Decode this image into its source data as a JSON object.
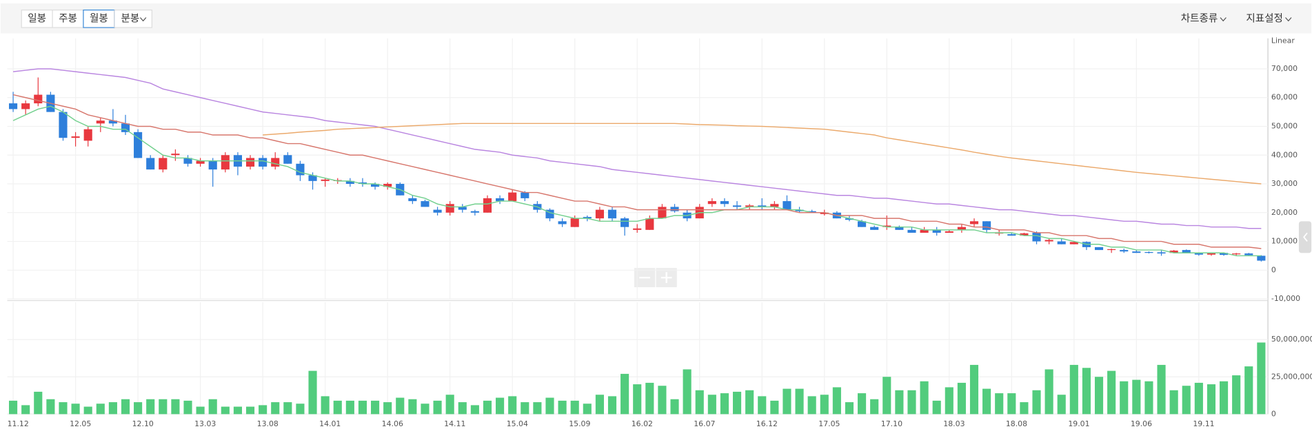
{
  "ui": {
    "period_tabs": [
      "일봉",
      "주봉",
      "월봉",
      "분봉"
    ],
    "selected_tab": 2,
    "menus": [
      "차트종류",
      "지표설정"
    ]
  },
  "chart_data": [
    {
      "type": "candlestick",
      "axis_label": "Linear",
      "categories": [
        "11.12",
        null,
        null,
        null,
        null,
        "12.05",
        null,
        null,
        null,
        null,
        "12.10",
        null,
        null,
        null,
        null,
        "13.03",
        null,
        null,
        null,
        null,
        "13.08",
        null,
        null,
        null,
        null,
        "14.01",
        null,
        null,
        null,
        null,
        "14.06",
        null,
        null,
        null,
        null,
        "14.11",
        null,
        null,
        null,
        null,
        "15.04",
        null,
        null,
        null,
        null,
        "15.09",
        null,
        null,
        null,
        null,
        "16.02",
        null,
        null,
        null,
        null,
        "16.07",
        null,
        null,
        null,
        null,
        "16.12",
        null,
        null,
        null,
        null,
        "17.05",
        null,
        null,
        null,
        null,
        "17.10",
        null,
        null,
        null,
        null,
        "18.03",
        null,
        null,
        null,
        null,
        "18.08",
        null,
        null,
        null,
        null,
        "19.01",
        null,
        null,
        null,
        null,
        "19.06",
        null,
        null,
        null,
        null,
        "19.11",
        null,
        null,
        null,
        null,
        null
      ],
      "open": [
        58000,
        56000,
        58000,
        61000,
        55000,
        46000,
        45000,
        51000,
        52000,
        51000,
        48000,
        39000,
        35000,
        40000,
        39000,
        37000,
        38000,
        35000,
        40000,
        36000,
        39000,
        36000,
        40000,
        37000,
        33000,
        31000,
        31000,
        31000,
        30500,
        30000,
        29000,
        30000,
        25000,
        24000,
        21000,
        20000,
        22000,
        20500,
        20000,
        25000,
        24000,
        27000,
        23000,
        21000,
        17000,
        15000,
        18500,
        18000,
        21000,
        18000,
        14000,
        14000,
        18000,
        22000,
        20000,
        18000,
        23000,
        24000,
        22500,
        22000,
        22500,
        22000,
        24000,
        21000,
        20500,
        19500,
        20000,
        18000,
        17000,
        15000,
        15000,
        15000,
        14000,
        13000,
        14000,
        13000,
        14000,
        16000,
        17000,
        13000,
        12500,
        12000,
        13000,
        10000,
        10000,
        9000,
        9800,
        8000,
        7000,
        7000,
        6500,
        6300,
        6200,
        6000,
        7000,
        6000,
        5400,
        6000,
        5500,
        5800,
        5000
      ],
      "high": [
        62000,
        59000,
        67000,
        62000,
        56000,
        48000,
        50000,
        53000,
        56000,
        54000,
        49000,
        40000,
        40000,
        42000,
        40000,
        39000,
        39000,
        41000,
        41000,
        40000,
        40000,
        41000,
        41000,
        38000,
        34000,
        32000,
        32000,
        32000,
        32000,
        30500,
        30500,
        30500,
        26000,
        24500,
        22000,
        24000,
        23000,
        21000,
        26000,
        26000,
        28000,
        27500,
        24000,
        21500,
        18000,
        19000,
        19000,
        22000,
        22000,
        18500,
        16000,
        19000,
        23000,
        23000,
        21000,
        23000,
        25000,
        25000,
        24000,
        23000,
        25000,
        24000,
        26000,
        22000,
        21000,
        21000,
        20500,
        19000,
        17500,
        15500,
        19000,
        15500,
        15000,
        15000,
        15000,
        14000,
        16000,
        18000,
        17000,
        14000,
        13000,
        13000,
        13500,
        11000,
        11000,
        10000,
        10000,
        8000,
        7500,
        7500,
        7000,
        6500,
        7000,
        7000,
        7200,
        6200,
        6000,
        6200,
        6000,
        6000,
        5200
      ],
      "low": [
        55000,
        54000,
        57000,
        55000,
        45000,
        43000,
        43000,
        48000,
        50000,
        47000,
        39000,
        35000,
        34000,
        38000,
        36000,
        36000,
        29000,
        34000,
        33000,
        35000,
        35000,
        35000,
        37000,
        31000,
        28000,
        29000,
        30000,
        29000,
        29000,
        28000,
        28000,
        26000,
        23000,
        22000,
        19000,
        19000,
        20000,
        19000,
        20000,
        23000,
        24000,
        24000,
        20000,
        17000,
        15000,
        15000,
        17000,
        17000,
        17000,
        12000,
        13000,
        14000,
        18000,
        20000,
        17000,
        18000,
        22000,
        22000,
        21000,
        21000,
        21000,
        21000,
        21000,
        20000,
        20000,
        19000,
        18000,
        17000,
        15000,
        14000,
        14000,
        14000,
        13000,
        13000,
        12000,
        13000,
        13000,
        15000,
        13000,
        12000,
        12000,
        12000,
        9000,
        9000,
        9000,
        9000,
        7000,
        7000,
        6000,
        6000,
        6000,
        5800,
        5000,
        6000,
        6000,
        5000,
        5000,
        5000,
        5000,
        5000,
        3000
      ],
      "close": [
        56000,
        58000,
        61000,
        55000,
        46000,
        46500,
        49000,
        52000,
        51000,
        48000,
        39000,
        35000,
        39000,
        40500,
        37000,
        38000,
        35000,
        40000,
        36000,
        39000,
        36000,
        39000,
        37000,
        33000,
        31000,
        31500,
        31300,
        30000,
        30000,
        29000,
        30000,
        26000,
        24000,
        22000,
        20000,
        23000,
        21000,
        20000,
        25000,
        24000,
        27000,
        25000,
        21000,
        18000,
        16000,
        18000,
        18000,
        21000,
        18000,
        15000,
        14500,
        18000,
        22000,
        20500,
        18000,
        22000,
        24000,
        23000,
        22000,
        22500,
        22000,
        23000,
        21000,
        20500,
        20000,
        20000,
        18000,
        17500,
        15000,
        14000,
        15500,
        14000,
        13000,
        14000,
        13000,
        13500,
        15000,
        17000,
        14000,
        13000,
        12000,
        12800,
        10000,
        10500,
        9000,
        9800,
        8000,
        7000,
        7300,
        6500,
        6000,
        6000,
        5800,
        6800,
        6000,
        5400,
        5900,
        5300,
        5800,
        5200,
        3300
      ],
      "up_color": "#e8383f",
      "down_color": "#2e7fdb",
      "lines": [
        {
          "color": "#72d08e",
          "values": [
            52000,
            54000,
            56000,
            57000,
            55000,
            52000,
            50000,
            50000,
            49000,
            49000,
            46000,
            43000,
            40000,
            39000,
            39000,
            38000,
            38000,
            38000,
            38000,
            38000,
            38000,
            37000,
            36000,
            34000,
            33000,
            32000,
            31000,
            31000,
            30000,
            30000,
            29000,
            28000,
            26000,
            25000,
            23000,
            22000,
            22000,
            23000,
            23000,
            24000,
            24000,
            23000,
            22000,
            20000,
            19000,
            18000,
            18000,
            17000,
            17000,
            17000,
            17000,
            18000,
            18000,
            19000,
            19000,
            20000,
            20000,
            21000,
            21000,
            22000,
            22000,
            22000,
            21000,
            21000,
            20000,
            20000,
            19000,
            18000,
            17000,
            16000,
            15000,
            15000,
            15000,
            14000,
            14000,
            14000,
            14000,
            14000,
            13000,
            13000,
            13000,
            12000,
            12000,
            11000,
            11000,
            10000,
            9000,
            9000,
            8000,
            8000,
            7000,
            7000,
            7000,
            6000,
            6000,
            6000,
            6000,
            6000,
            5000,
            5000,
            5000
          ]
        },
        {
          "color": "#d7766c",
          "values": [
            61000,
            60000,
            59000,
            58000,
            57000,
            56000,
            54000,
            53000,
            52000,
            51000,
            50000,
            50000,
            49000,
            49000,
            48000,
            48000,
            47000,
            47000,
            47000,
            46000,
            46000,
            45000,
            44000,
            44000,
            43000,
            42000,
            41000,
            40000,
            40000,
            39000,
            38000,
            37000,
            36000,
            35000,
            34000,
            33000,
            32000,
            31000,
            30000,
            29000,
            28000,
            27000,
            27000,
            26000,
            25000,
            24000,
            24000,
            23000,
            22000,
            22000,
            21000,
            21000,
            21000,
            21000,
            21000,
            21000,
            21000,
            21000,
            21000,
            21000,
            21000,
            21000,
            21000,
            20000,
            20000,
            20000,
            19000,
            19000,
            19000,
            18000,
            18000,
            18000,
            17000,
            17000,
            17000,
            16000,
            16000,
            15000,
            15000,
            14000,
            14000,
            14000,
            13000,
            13000,
            12000,
            12000,
            12000,
            11000,
            11000,
            10000,
            10000,
            10000,
            10000,
            9000,
            9000,
            9000,
            8000,
            8000,
            8000,
            8000,
            7500
          ]
        },
        {
          "color": "#b985e0",
          "values": [
            69000,
            69500,
            70000,
            70000,
            69500,
            69000,
            68500,
            68000,
            67500,
            67000,
            66000,
            65000,
            63000,
            62000,
            61000,
            60000,
            59000,
            58000,
            57000,
            56000,
            55000,
            54500,
            54000,
            53500,
            53000,
            52000,
            51500,
            51000,
            50500,
            50000,
            49000,
            48000,
            47000,
            46000,
            45000,
            44000,
            43000,
            42000,
            41500,
            41000,
            40000,
            39500,
            39000,
            38000,
            37500,
            37000,
            36500,
            36000,
            35000,
            34500,
            34000,
            33500,
            33000,
            32500,
            32000,
            31500,
            31000,
            30500,
            30000,
            29500,
            29000,
            28500,
            28000,
            27500,
            27000,
            26500,
            26000,
            26000,
            25500,
            25000,
            25000,
            24500,
            24000,
            23500,
            23000,
            23000,
            22500,
            22000,
            21500,
            21000,
            21000,
            20500,
            20000,
            19500,
            19000,
            19000,
            18500,
            18000,
            17500,
            17000,
            17000,
            16500,
            16000,
            16000,
            15500,
            15500,
            15000,
            15000,
            15000,
            14500,
            14500
          ]
        },
        {
          "color": "#eba96b",
          "values": [
            null,
            null,
            null,
            null,
            null,
            null,
            null,
            null,
            null,
            null,
            null,
            null,
            null,
            null,
            null,
            null,
            null,
            null,
            null,
            null,
            47000,
            47300,
            47600,
            48000,
            48300,
            48600,
            49000,
            49200,
            49400,
            49600,
            49800,
            50000,
            50200,
            50400,
            50600,
            50800,
            51000,
            51000,
            51000,
            51000,
            51000,
            51000,
            51000,
            51000,
            51000,
            51000,
            51000,
            51000,
            51000,
            51000,
            51000,
            51000,
            51000,
            51000,
            50800,
            50600,
            50500,
            50400,
            50200,
            50100,
            50000,
            49800,
            49600,
            49400,
            49200,
            49000,
            48500,
            48000,
            47500,
            47000,
            46000,
            45300,
            44600,
            43900,
            43200,
            42500,
            41800,
            41000,
            40300,
            39600,
            39000,
            38500,
            38000,
            37500,
            37000,
            36500,
            36000,
            35500,
            35000,
            34500,
            34000,
            33600,
            33200,
            32800,
            32400,
            32000,
            31600,
            31200,
            30800,
            30400,
            30000
          ]
        }
      ],
      "ylim": [
        -10000,
        80000
      ],
      "yticks": [
        {
          "value": -10000,
          "label": "-10,000"
        },
        0,
        {
          "value": 10000,
          "label": "10,000"
        },
        {
          "value": 20000,
          "label": "20,000"
        },
        {
          "value": 30000,
          "label": "30,000"
        },
        {
          "value": 40000,
          "label": "40,000"
        },
        {
          "value": 50000,
          "label": "50,000"
        },
        {
          "value": 60000,
          "label": "60,000"
        },
        {
          "value": 70000,
          "label": "70,000"
        }
      ],
      "grid": true
    },
    {
      "type": "bar",
      "color": "#52cc7d",
      "values": [
        9000000,
        6000000,
        15000000,
        10000000,
        8000000,
        7000000,
        5000000,
        7000000,
        8000000,
        10000000,
        8000000,
        10000000,
        10000000,
        10000000,
        9000000,
        5000000,
        10000000,
        5000000,
        5000000,
        5000000,
        6000000,
        8000000,
        8000000,
        7000000,
        29000000,
        12000000,
        9000000,
        9000000,
        9000000,
        9000000,
        8000000,
        11000000,
        10000000,
        7000000,
        9000000,
        13000000,
        8000000,
        6000000,
        9000000,
        11000000,
        12000000,
        8000000,
        8000000,
        11000000,
        9000000,
        9000000,
        7000000,
        13000000,
        12000000,
        27000000,
        20000000,
        21000000,
        19000000,
        10000000,
        30000000,
        16000000,
        13000000,
        14000000,
        15000000,
        16000000,
        12000000,
        9000000,
        17000000,
        17000000,
        12000000,
        13000000,
        18000000,
        8000000,
        14000000,
        10000000,
        25000000,
        16000000,
        16000000,
        22000000,
        9000000,
        18000000,
        21000000,
        33000000,
        17000000,
        14000000,
        14000000,
        8000000,
        16000000,
        30000000,
        13000000,
        33000000,
        31000000,
        25000000,
        29000000,
        22000000,
        23000000,
        22000000,
        33000000,
        16000000,
        19000000,
        21000000,
        20000000,
        22000000,
        26000000,
        32000000,
        48000000
      ],
      "ylim": [
        0,
        75000000
      ],
      "yticks": [
        0,
        {
          "value": 25000000,
          "label": "25,000,000"
        },
        {
          "value": 50000000,
          "label": "50,000,000"
        }
      ],
      "grid": true
    }
  ]
}
